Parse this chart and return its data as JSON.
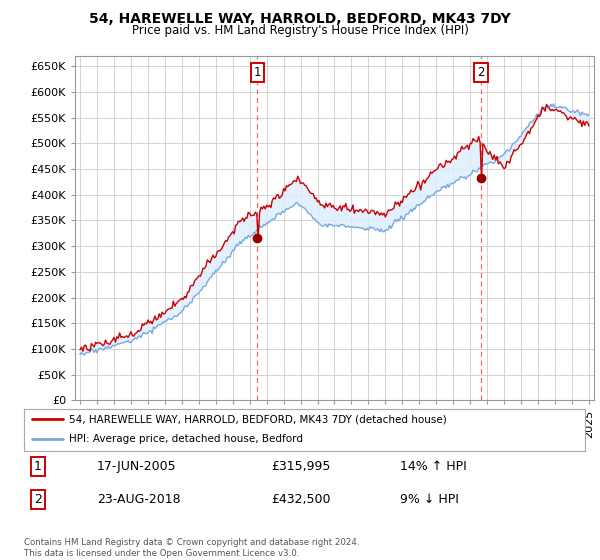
{
  "title": "54, HAREWELLE WAY, HARROLD, BEDFORD, MK43 7DY",
  "subtitle": "Price paid vs. HM Land Registry's House Price Index (HPI)",
  "legend_line1": "54, HAREWELLE WAY, HARROLD, BEDFORD, MK43 7DY (detached house)",
  "legend_line2": "HPI: Average price, detached house, Bedford",
  "annotation1_label": "1",
  "annotation1_date": "17-JUN-2005",
  "annotation1_price": "£315,995",
  "annotation1_hpi": "14% ↑ HPI",
  "annotation2_label": "2",
  "annotation2_date": "23-AUG-2018",
  "annotation2_price": "£432,500",
  "annotation2_hpi": "9% ↓ HPI",
  "footnote": "Contains HM Land Registry data © Crown copyright and database right 2024.\nThis data is licensed under the Open Government Licence v3.0.",
  "hpi_color": "#7aaadd",
  "hpi_fill_color": "#ddeeff",
  "price_color": "#cc0000",
  "marker_color": "#990000",
  "vline_color": "#ff6666",
  "ylim": [
    0,
    670000
  ],
  "yticks": [
    0,
    50000,
    100000,
    150000,
    200000,
    250000,
    300000,
    350000,
    400000,
    450000,
    500000,
    550000,
    600000,
    650000
  ],
  "sale1_x": 2005.46,
  "sale1_y": 315995,
  "sale2_x": 2018.64,
  "sale2_y": 432500,
  "xlim_left": 1994.7,
  "xlim_right": 2025.3
}
